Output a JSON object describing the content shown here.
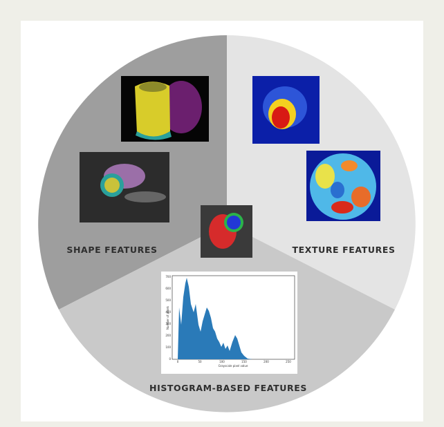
{
  "labels": {
    "shape": "SHAPE FEATURES",
    "texture": "TEXTURE FEATURES",
    "histogram": "HISTOGRAM-BASED FEATURES"
  },
  "histogram_panel": {
    "x_label": "Grayscale pixel value",
    "y_label": "Number of pixels",
    "x_ticks": [
      "0",
      "50",
      "100",
      "150",
      "200",
      "250"
    ],
    "y_ticks": [
      "0",
      "100",
      "200",
      "300",
      "400",
      "500",
      "600",
      "700"
    ]
  }
}
